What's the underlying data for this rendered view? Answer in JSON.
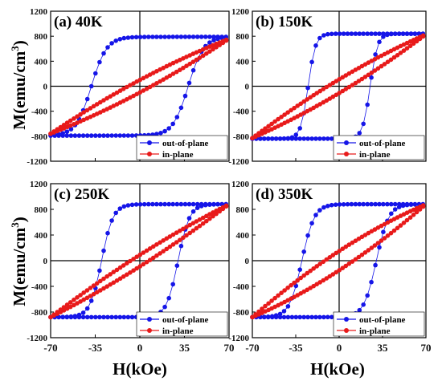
{
  "figure": {
    "y_axis_title_base": "M(emu/cm",
    "y_axis_title_sup": "3",
    "y_axis_title_close": ")",
    "x_axis_title": "H(kOe)"
  },
  "chart_data": [
    {
      "type": "scatter",
      "title": "(a) 40K",
      "xlabel": "H(kOe)",
      "ylabel": "M(emu/cm3)",
      "xlim": [
        -70,
        70
      ],
      "ylim": [
        -1200,
        1200
      ],
      "xticks": [],
      "yticks": [
        "1200",
        "800",
        "400",
        "0",
        "-400",
        "-800",
        "-1200"
      ],
      "legend": "bottom-right",
      "series": [
        {
          "name": "out-of-plane",
          "color": "#1515e8",
          "kind": "square-loop",
          "Hc": 38,
          "Ms": 790,
          "w": 12
        },
        {
          "name": "in-plane",
          "color": "#e81a1a",
          "kind": "lens-loop",
          "Ms": 760,
          "c": 6,
          "open": 100
        }
      ]
    },
    {
      "type": "scatter",
      "title": "(b) 150K",
      "xlabel": "H(kOe)",
      "ylabel": "M(emu/cm3)",
      "xlim": [
        -70,
        70
      ],
      "ylim": [
        -1200,
        1200
      ],
      "xticks": [],
      "yticks": [
        "1200",
        "800",
        "400",
        "0",
        "-400",
        "-800",
        "-1200"
      ],
      "legend": "bottom-right",
      "series": [
        {
          "name": "out-of-plane",
          "color": "#1515e8",
          "kind": "square-loop",
          "Hc": 25,
          "Ms": 840,
          "w": 6
        },
        {
          "name": "in-plane",
          "color": "#e81a1a",
          "kind": "lens-loop",
          "Ms": 830,
          "c": 5,
          "open": 110
        }
      ]
    },
    {
      "type": "scatter",
      "title": "(c) 250K",
      "xlabel": "H(kOe)",
      "ylabel": "M(emu/cm3)",
      "xlim": [
        -70,
        70
      ],
      "ylim": [
        -1200,
        1200
      ],
      "xticks": [
        "-70",
        "-35",
        "0",
        "35",
        "70"
      ],
      "yticks": [
        "1200",
        "800",
        "400",
        "0",
        "-400",
        "-800",
        "-1200"
      ],
      "legend": "bottom-right",
      "series": [
        {
          "name": "out-of-plane",
          "color": "#1515e8",
          "kind": "square-loop",
          "Hc": 30,
          "Ms": 880,
          "w": 9
        },
        {
          "name": "in-plane",
          "color": "#e81a1a",
          "kind": "lens-loop",
          "Ms": 880,
          "c": 5,
          "open": 90
        }
      ]
    },
    {
      "type": "scatter",
      "title": "(d) 350K",
      "xlabel": "H(kOe)",
      "ylabel": "M(emu/cm3)",
      "xlim": [
        -70,
        70
      ],
      "ylim": [
        -1200,
        1200
      ],
      "xticks": [
        "-70",
        "-35",
        "0",
        "35",
        "70"
      ],
      "yticks": [
        "1200",
        "800",
        "400",
        "0",
        "-400",
        "-800",
        "-1200"
      ],
      "legend": "bottom-right",
      "series": [
        {
          "name": "out-of-plane",
          "color": "#1515e8",
          "kind": "square-loop",
          "Hc": 30,
          "Ms": 880,
          "w": 10
        },
        {
          "name": "in-plane",
          "color": "#e81a1a",
          "kind": "lens-loop",
          "Ms": 880,
          "c": 5,
          "open": 150
        }
      ]
    }
  ]
}
